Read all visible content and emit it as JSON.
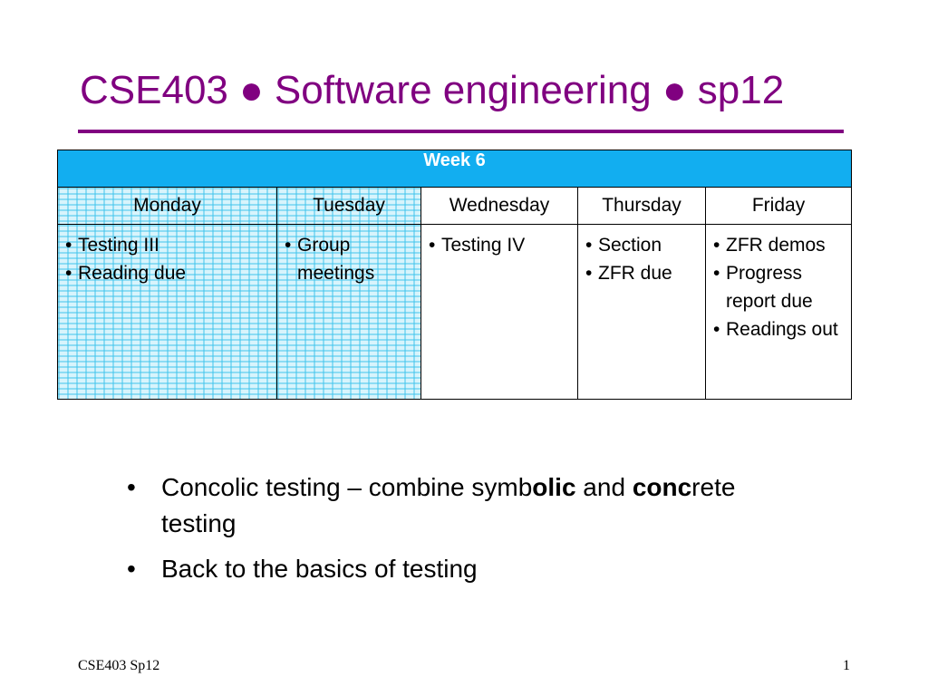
{
  "title": "CSE403 ● Software engineering ● sp12",
  "schedule": {
    "week_label": "Week 6",
    "days": [
      "Monday",
      "Tuesday",
      "Wednesday",
      "Thursday",
      "Friday"
    ],
    "items": [
      [
        "Testing III",
        "Reading due"
      ],
      [
        "Group meetings"
      ],
      [
        "Testing IV"
      ],
      [
        "Section",
        "ZFR due"
      ],
      [
        "ZFR demos",
        "Progress report due",
        "Readings out"
      ]
    ],
    "highlighted_days": [
      "Monday",
      "Tuesday"
    ],
    "header_color": "#12aef0"
  },
  "bullets": {
    "b1": {
      "p1": "Concolic testing – combine symb",
      "p2": "olic",
      "p3": " and ",
      "p4": "conc",
      "p5": "rete testing"
    },
    "b2": "Back to the basics of testing"
  },
  "footer": {
    "left": "CSE403 Sp12",
    "right": "1"
  },
  "colors": {
    "title": "#800080",
    "pattern": "#3fc4ec"
  }
}
